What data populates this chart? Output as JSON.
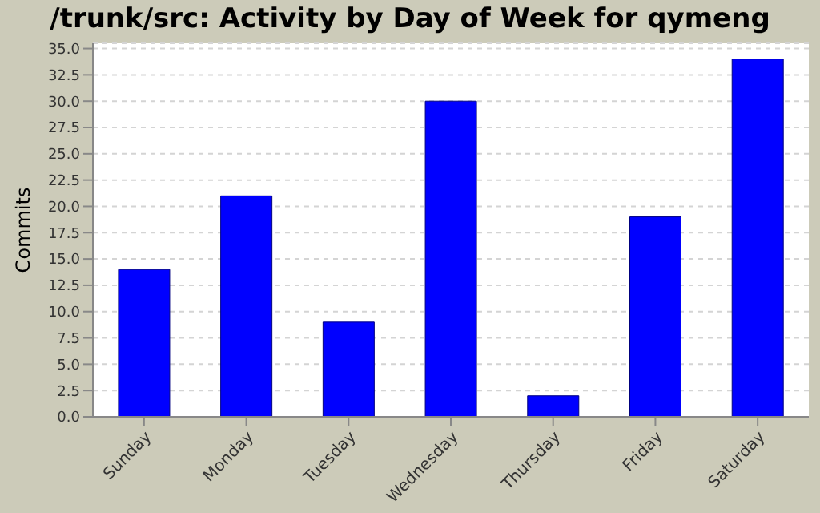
{
  "chart_data": {
    "type": "bar",
    "title": "/trunk/src: Activity by Day of Week for qymeng",
    "ylabel": "Commits",
    "categories": [
      "Sunday",
      "Monday",
      "Tuesday",
      "Wednesday",
      "Thursday",
      "Friday",
      "Saturday"
    ],
    "values": [
      14,
      21,
      9,
      30,
      2,
      19,
      34
    ],
    "color": "#0000ff",
    "ylim": [
      0,
      35.5
    ],
    "yticks": [
      {
        "value": 0,
        "label": "0.0"
      },
      {
        "value": 2.5,
        "label": "2.5"
      },
      {
        "value": 5,
        "label": "5.0"
      },
      {
        "value": 7.5,
        "label": "7.5"
      },
      {
        "value": 10,
        "label": "10.0"
      },
      {
        "value": 12.5,
        "label": "12.5"
      },
      {
        "value": 15,
        "label": "15.0"
      },
      {
        "value": 17.5,
        "label": "17.5"
      },
      {
        "value": 20,
        "label": "20.0"
      },
      {
        "value": 22.5,
        "label": "22.5"
      },
      {
        "value": 25,
        "label": "25.0"
      },
      {
        "value": 27.5,
        "label": "27.5"
      },
      {
        "value": 30,
        "label": "30.0"
      },
      {
        "value": 32.5,
        "label": "32.5"
      },
      {
        "value": 35,
        "label": "35.0"
      }
    ],
    "grid": "y"
  }
}
